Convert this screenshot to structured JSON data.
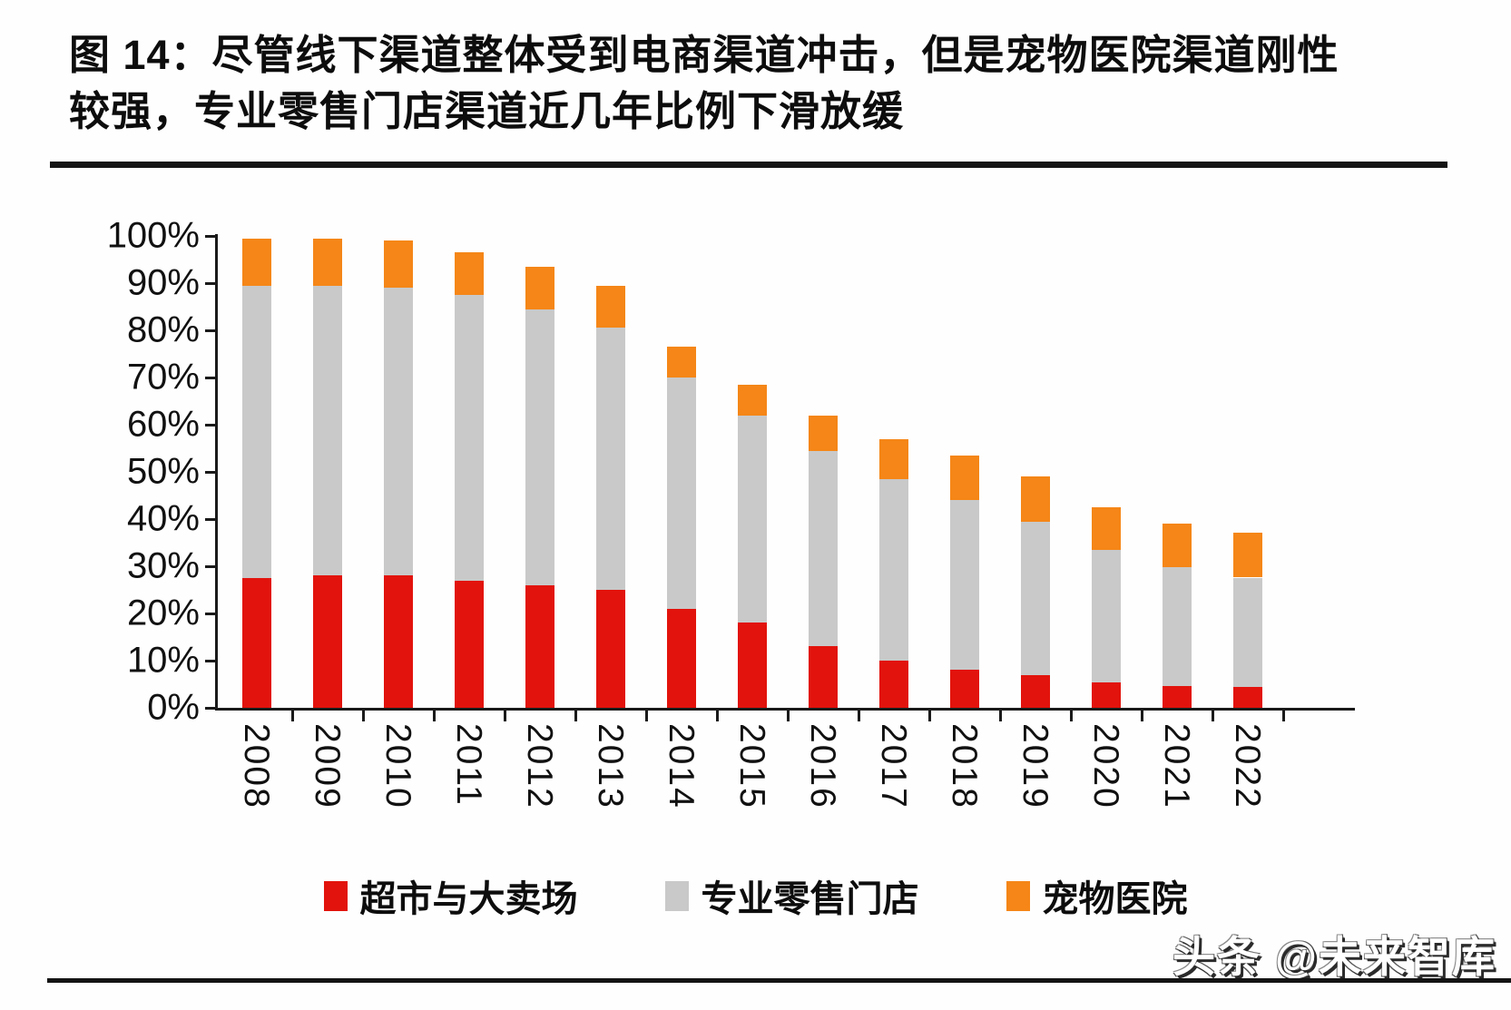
{
  "title": {
    "line1": "图 14：尽管线下渠道整体受到电商渠道冲击，但是宠物医院渠道刚性",
    "line2": "较强，专业零售门店渠道近几年比例下滑放缓"
  },
  "watermark": "头条 @未来智库",
  "colors": {
    "supermarket": "#e2130c",
    "specialty_retail": "#c9c9c9",
    "pet_hospital": "#f58617",
    "axis": "#1a1a1a",
    "text": "#111111"
  },
  "chart_data": {
    "type": "bar",
    "stacked": true,
    "title": "",
    "xlabel": "",
    "ylabel": "",
    "ylim": [
      0,
      100
    ],
    "grid": false,
    "legend_position": "bottom",
    "yticks": [
      "100%",
      "90%",
      "80%",
      "70%",
      "60%",
      "50%",
      "40%",
      "30%",
      "20%",
      "10%",
      "0%"
    ],
    "categories": [
      "2008",
      "2009",
      "2010",
      "2011",
      "2012",
      "2013",
      "2014",
      "2015",
      "2016",
      "2017",
      "2018",
      "2019",
      "2020",
      "2021",
      "2022"
    ],
    "series": [
      {
        "key": "supermarket",
        "name": "超市与大卖场",
        "color": "#e2130c",
        "values": [
          27.5,
          28.0,
          28.0,
          27.0,
          26.0,
          25.0,
          21.0,
          18.0,
          13.0,
          10.0,
          8.0,
          7.0,
          5.3,
          4.6,
          4.5
        ]
      },
      {
        "key": "specialty-retail",
        "name": "专业零售门店",
        "color": "#c9c9c9",
        "values": [
          62.0,
          61.5,
          61.0,
          60.5,
          58.5,
          55.5,
          49.0,
          44.0,
          41.5,
          38.5,
          36.0,
          32.5,
          28.2,
          25.2,
          23.1
        ]
      },
      {
        "key": "pet-hospital",
        "name": "宠物医院",
        "color": "#f58617",
        "values": [
          10.0,
          10.0,
          10.0,
          9.0,
          9.0,
          9.0,
          6.5,
          6.5,
          7.5,
          8.5,
          9.5,
          9.5,
          9.0,
          9.2,
          9.6
        ]
      }
    ],
    "totals": [
      99.5,
      99.5,
      99.0,
      96.5,
      93.5,
      89.5,
      76.5,
      68.5,
      62.0,
      57.0,
      53.5,
      49.0,
      42.5,
      39.0,
      37.2
    ]
  }
}
